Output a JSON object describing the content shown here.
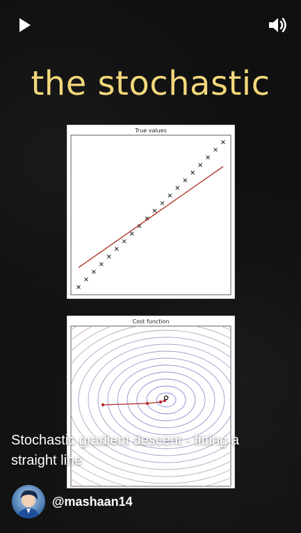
{
  "controls": {
    "play_icon": "play-icon",
    "volume_icon": "volume-icon"
  },
  "title": "the stochastic",
  "colors": {
    "title": "#f2d77c",
    "fit_line": "#b03a2e",
    "path": "#b02a2a",
    "contour": "#8a8fd6"
  },
  "plot_top": {
    "title": "True values"
  },
  "plot_bottom": {
    "title": "Cost function"
  },
  "caption": "Stochastic gradient descent - fitting a straight line",
  "channel": {
    "handle": "@mashaan14",
    "avatar_icon": "avatar"
  }
}
